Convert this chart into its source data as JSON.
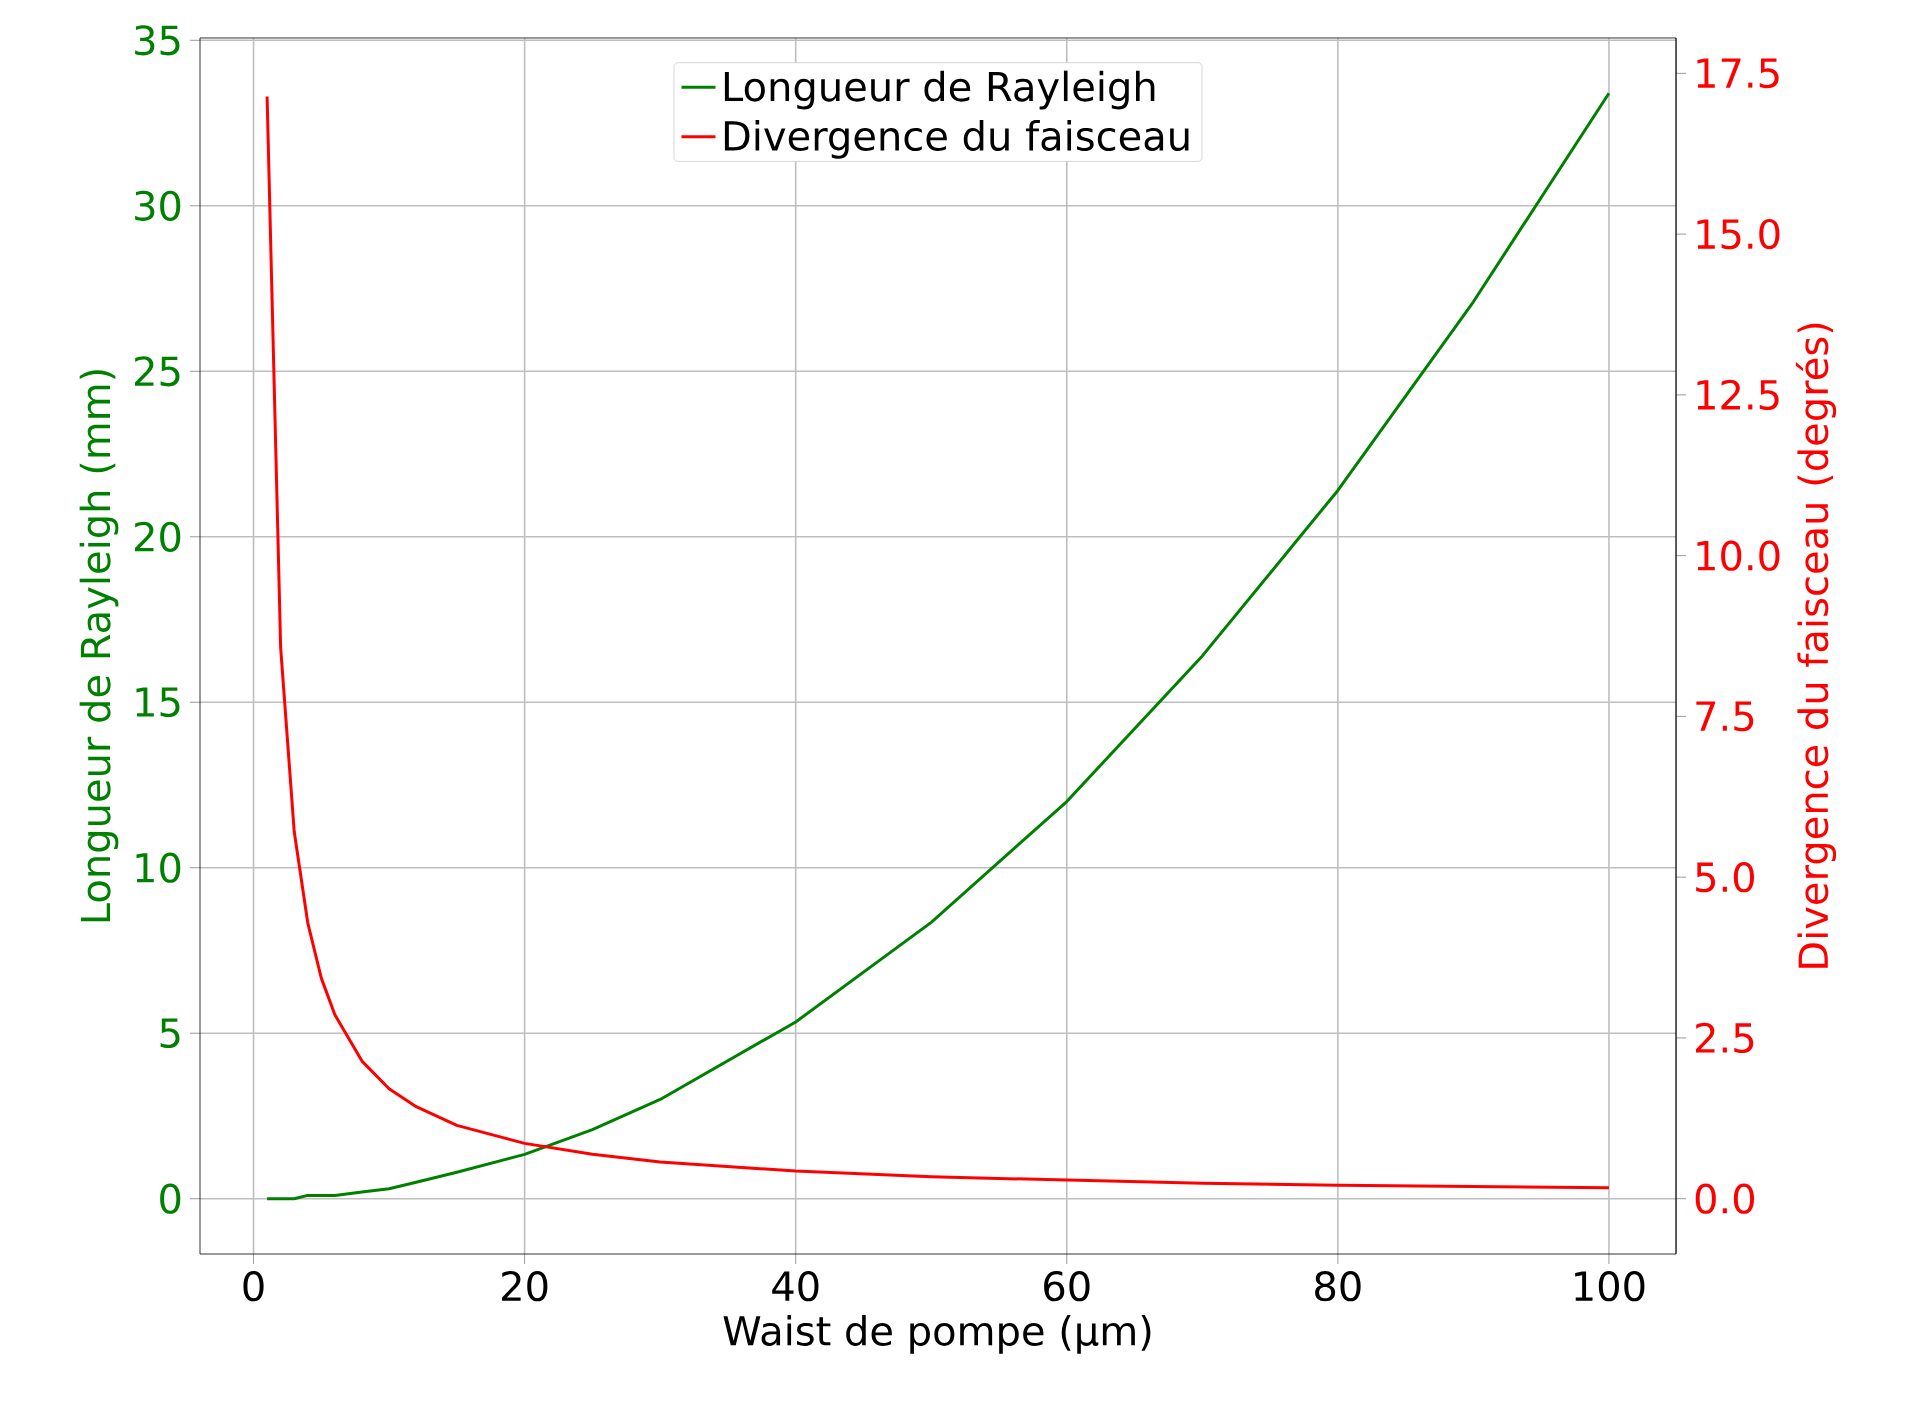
{
  "chart_data": {
    "type": "line",
    "xlabel": "Waist de pompe (µm)",
    "ylabel": "Longueur de Rayleigh (mm)",
    "y2label": "Divergence du faisceau (degrés)",
    "xlim": [
      -3.95,
      104.95
    ],
    "xticks": [
      0,
      20,
      40,
      60,
      80,
      100
    ],
    "ylim": [
      -1.67,
      35.07
    ],
    "yticks": [
      0,
      5,
      10,
      15,
      20,
      25,
      30,
      35
    ],
    "y2lim": [
      -0.86,
      18.05
    ],
    "y2ticks": [
      {
        "value": 0,
        "label": "0.0"
      },
      {
        "value": 2.5,
        "label": "2.5"
      },
      {
        "value": 5,
        "label": "5.0"
      },
      {
        "value": 7.5,
        "label": "7.5"
      },
      {
        "value": 10,
        "label": "10.0"
      },
      {
        "value": 12.5,
        "label": "12.5"
      },
      {
        "value": 15,
        "label": "15.0"
      },
      {
        "value": 17.5,
        "label": "17.5"
      }
    ],
    "grid": true,
    "legend": "top",
    "x": [
      1,
      2,
      3,
      4,
      5,
      6,
      8,
      10,
      12,
      15,
      20,
      25,
      30,
      40,
      50,
      60,
      70,
      80,
      90,
      100
    ],
    "series": [
      {
        "name": "Longueur de Rayleigh",
        "color": "#008000",
        "values": [
          0.0,
          0.0,
          0.0,
          0.1,
          0.1,
          0.1,
          0.2,
          0.3,
          0.5,
          0.8,
          1.34,
          2.09,
          3.0,
          5.34,
          8.35,
          12.0,
          16.4,
          21.4,
          27.1,
          33.4
        ]
      },
      {
        "name": "Divergence du faisceau",
        "color": "#ff0000",
        "axis": "y2",
        "values": [
          17.14,
          8.57,
          5.71,
          4.29,
          3.43,
          2.86,
          2.14,
          1.71,
          1.43,
          1.14,
          0.86,
          0.69,
          0.57,
          0.43,
          0.34,
          0.29,
          0.24,
          0.21,
          0.19,
          0.17
        ]
      }
    ]
  }
}
